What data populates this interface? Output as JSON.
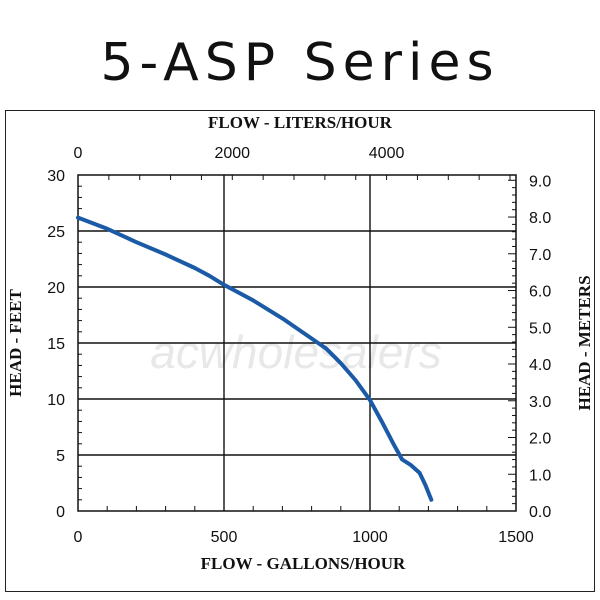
{
  "title": "5-ASP Series",
  "watermark": "acwholesalers",
  "chart_data": {
    "type": "line",
    "x_bottom": {
      "label": "FLOW - GALLONS/HOUR",
      "range": [
        0,
        1500
      ],
      "ticks": [
        0,
        500,
        1000,
        1500
      ],
      "minor_step": 100
    },
    "x_top": {
      "label": "FLOW - LITERS/HOUR",
      "ticks": [
        0,
        2000,
        4000
      ],
      "liters_per_gallon": 3.785
    },
    "y_left": {
      "label": "HEAD - FEET",
      "range": [
        0,
        30
      ],
      "ticks": [
        0,
        5,
        10,
        15,
        20,
        25,
        30
      ],
      "minor_step": 1
    },
    "y_right": {
      "label": "HEAD - METERS",
      "range": [
        0,
        9.144
      ],
      "ticks": [
        "0.0",
        "1.0",
        "2.0",
        "3.0",
        "4.0",
        "5.0",
        "6.0",
        "7.0",
        "8.0",
        "9.0"
      ],
      "minor_step": 0.2
    },
    "grid": true,
    "series_color": "#1a5aa6",
    "series": [
      {
        "x": [
          0,
          100,
          200,
          300,
          400,
          450,
          500,
          600,
          700,
          800,
          850,
          900,
          950,
          1000,
          1040,
          1080,
          1110,
          1140,
          1170,
          1190,
          1210
        ],
        "y": [
          26.2,
          25.2,
          24.0,
          22.9,
          21.7,
          21.0,
          20.2,
          18.8,
          17.2,
          15.4,
          14.5,
          13.2,
          11.7,
          9.9,
          8.0,
          6.0,
          4.6,
          4.1,
          3.4,
          2.3,
          1.0
        ]
      }
    ]
  }
}
